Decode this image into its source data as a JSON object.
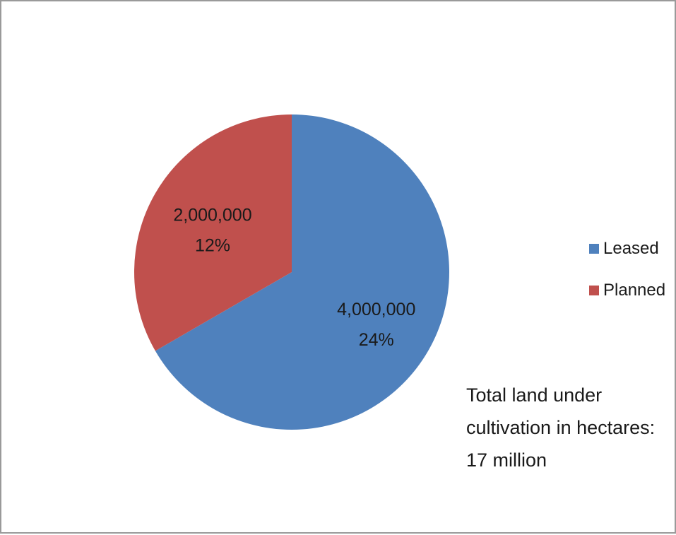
{
  "chart_data": {
    "type": "pie",
    "slices": [
      {
        "name": "Leased",
        "value": 4000000,
        "value_label": "4,000,000",
        "percent_label": "24%",
        "color": "#4F81BD"
      },
      {
        "name": "Planned",
        "value": 2000000,
        "value_label": "2,000,000",
        "percent_label": "12%",
        "color": "#C0504D"
      }
    ],
    "legend": {
      "placement": "right",
      "entries": [
        "Leased",
        "Planned"
      ]
    },
    "annotation": {
      "lines": [
        "Total land under",
        "cultivation in hectares:",
        "17 million"
      ]
    }
  }
}
